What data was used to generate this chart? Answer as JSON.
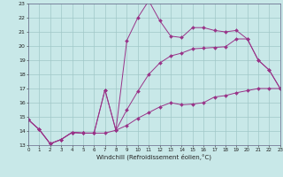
{
  "xlabel": "Windchill (Refroidissement éolien,°C)",
  "background_color": "#c8e8e8",
  "grid_color": "#a0c8c8",
  "line_color": "#993388",
  "xmin": 0,
  "xmax": 23,
  "ymin": 13,
  "ymax": 23,
  "yticks": [
    13,
    14,
    15,
    16,
    17,
    18,
    19,
    20,
    21,
    22,
    23
  ],
  "xticks": [
    0,
    1,
    2,
    3,
    4,
    5,
    6,
    7,
    8,
    9,
    10,
    11,
    12,
    13,
    14,
    15,
    16,
    17,
    18,
    19,
    20,
    21,
    22,
    23
  ],
  "line1_x": [
    0,
    1,
    2,
    3,
    4,
    5,
    6,
    7,
    8,
    9,
    10,
    11,
    12,
    13,
    14,
    15,
    16,
    17,
    18,
    19,
    20,
    21,
    22,
    23
  ],
  "line1_y": [
    14.8,
    14.1,
    13.1,
    13.4,
    13.9,
    13.85,
    13.85,
    16.9,
    14.05,
    20.4,
    22.0,
    23.2,
    21.8,
    20.7,
    20.6,
    21.3,
    21.3,
    21.1,
    21.0,
    21.1,
    20.5,
    19.0,
    18.3,
    17.0
  ],
  "line2_x": [
    0,
    1,
    2,
    3,
    4,
    5,
    6,
    7,
    8,
    9,
    10,
    11,
    12,
    13,
    14,
    15,
    16,
    17,
    18,
    19,
    20,
    21,
    22,
    23
  ],
  "line2_y": [
    14.8,
    14.1,
    13.1,
    13.4,
    13.9,
    13.85,
    13.85,
    13.85,
    14.05,
    14.4,
    14.9,
    15.3,
    15.7,
    16.0,
    15.85,
    15.9,
    16.0,
    16.4,
    16.5,
    16.7,
    16.85,
    17.0,
    17.0,
    17.0
  ],
  "line3_x": [
    0,
    1,
    2,
    3,
    4,
    5,
    6,
    7,
    8,
    9,
    10,
    11,
    12,
    13,
    14,
    15,
    16,
    17,
    18,
    19,
    20,
    21,
    22,
    23
  ],
  "line3_y": [
    14.8,
    14.1,
    13.1,
    13.4,
    13.9,
    13.85,
    13.85,
    16.9,
    14.05,
    15.5,
    16.8,
    18.0,
    18.8,
    19.3,
    19.5,
    19.8,
    19.85,
    19.9,
    19.95,
    20.5,
    20.5,
    19.0,
    18.3,
    17.0
  ]
}
